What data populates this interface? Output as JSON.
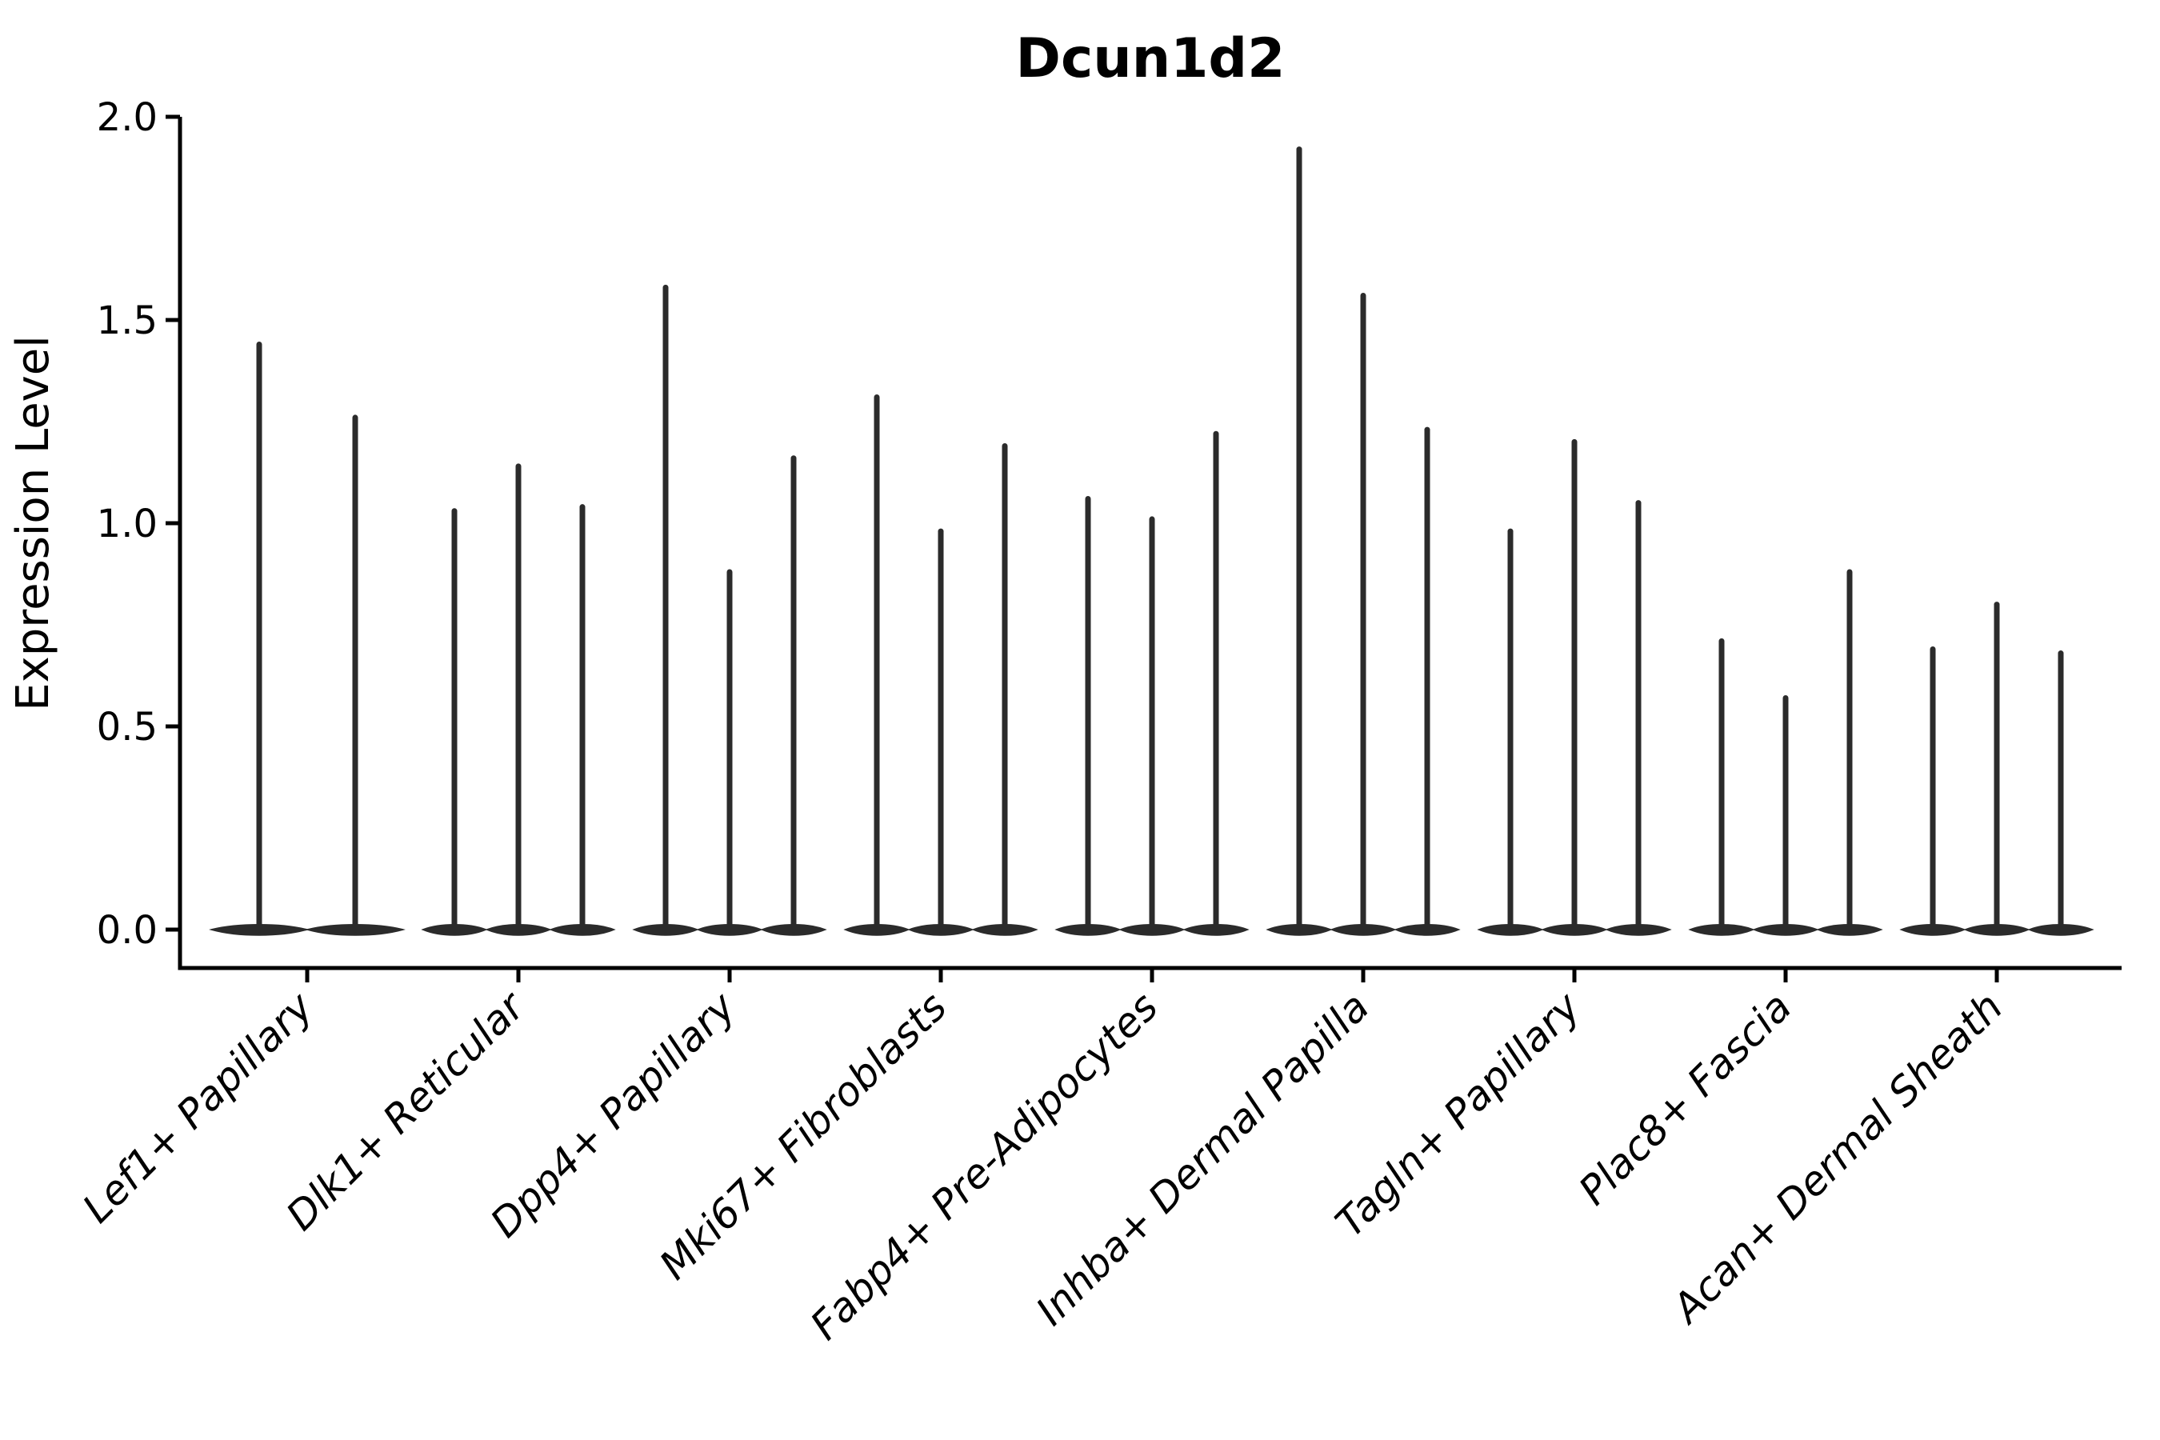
{
  "chart_data": {
    "type": "violin",
    "title": "Dcun1d2",
    "ylabel": "Expression Level",
    "xlabel": "",
    "ylim": [
      -0.09,
      2.0
    ],
    "yticks": [
      0.0,
      0.5,
      1.0,
      1.5,
      2.0
    ],
    "ytick_labels": [
      "0.0",
      "0.5",
      "1.0",
      "1.5",
      "2.0"
    ],
    "grid": "off",
    "legend": "none",
    "x_label_rotation_deg": 45,
    "categories": [
      "Lef1+ Papillary",
      "Dlk1+ Reticular",
      "Dpp4+ Papillary",
      "Mki67+ Fibroblasts",
      "Fabp4+ Pre-Adipocytes",
      "Inhba+ Dermal Papilla",
      "Tagln+ Papillary",
      "Plac8+ Fascia",
      "Acan+ Dermal Sheath"
    ],
    "series": [
      {
        "category": "Lef1+ Papillary",
        "violin_peak_values": [
          1.44,
          1.26
        ]
      },
      {
        "category": "Dlk1+ Reticular",
        "violin_peak_values": [
          1.03,
          1.14,
          1.04
        ]
      },
      {
        "category": "Dpp4+ Papillary",
        "violin_peak_values": [
          1.58,
          0.88,
          1.16
        ]
      },
      {
        "category": "Mki67+ Fibroblasts",
        "violin_peak_values": [
          1.31,
          0.98,
          1.19
        ]
      },
      {
        "category": "Fabp4+ Pre-Adipocytes",
        "violin_peak_values": [
          1.06,
          1.01,
          1.22
        ]
      },
      {
        "category": "Inhba+ Dermal Papilla",
        "violin_peak_values": [
          1.92,
          1.56,
          1.23
        ]
      },
      {
        "category": "Tagln+ Papillary",
        "violin_peak_values": [
          0.98,
          1.2,
          1.05
        ]
      },
      {
        "category": "Plac8+ Fascia",
        "violin_peak_values": [
          0.71,
          0.57,
          0.88
        ]
      },
      {
        "category": "Acan+ Dermal Sheath",
        "violin_peak_values": [
          0.69,
          0.8,
          0.68
        ]
      }
    ],
    "violin_shape_note": "each violin is a flat wide density lens at 0 with a thin spike rising to its peak value",
    "colors": {
      "violin": "#2b2b2b",
      "axis": "#000000",
      "background": "#ffffff"
    }
  }
}
